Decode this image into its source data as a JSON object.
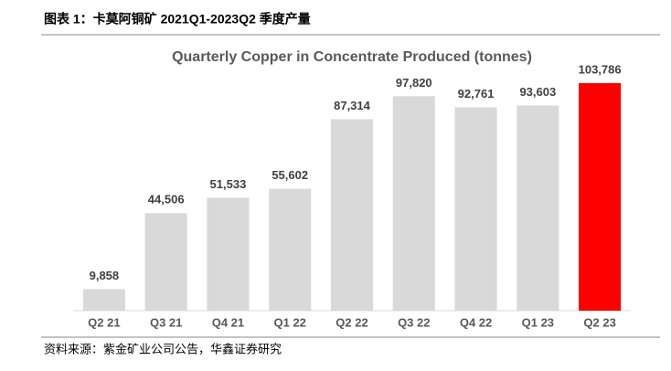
{
  "header": "图表 1：卡莫阿铜矿 2021Q1-2023Q2 季度产量",
  "source": "资料来源：紫金矿业公司公告，华鑫证券研究",
  "chart_data": {
    "type": "bar",
    "title": "Quarterly Copper in Concentrate Produced (tonnes)",
    "categories": [
      "Q2 21",
      "Q3 21",
      "Q4 21",
      "Q1 22",
      "Q2 22",
      "Q3 22",
      "Q4 22",
      "Q1 23",
      "Q2 23"
    ],
    "values": [
      9858,
      44506,
      51533,
      55602,
      87314,
      97820,
      92761,
      93603,
      103786
    ],
    "value_labels": [
      "9,858",
      "44,506",
      "51,533",
      "55,602",
      "87,314",
      "97,820",
      "92,761",
      "93,603",
      "103,786"
    ],
    "colors": [
      "#d9d9d9",
      "#d9d9d9",
      "#d9d9d9",
      "#d9d9d9",
      "#d9d9d9",
      "#d9d9d9",
      "#d9d9d9",
      "#d9d9d9",
      "#ff0000"
    ]
  }
}
